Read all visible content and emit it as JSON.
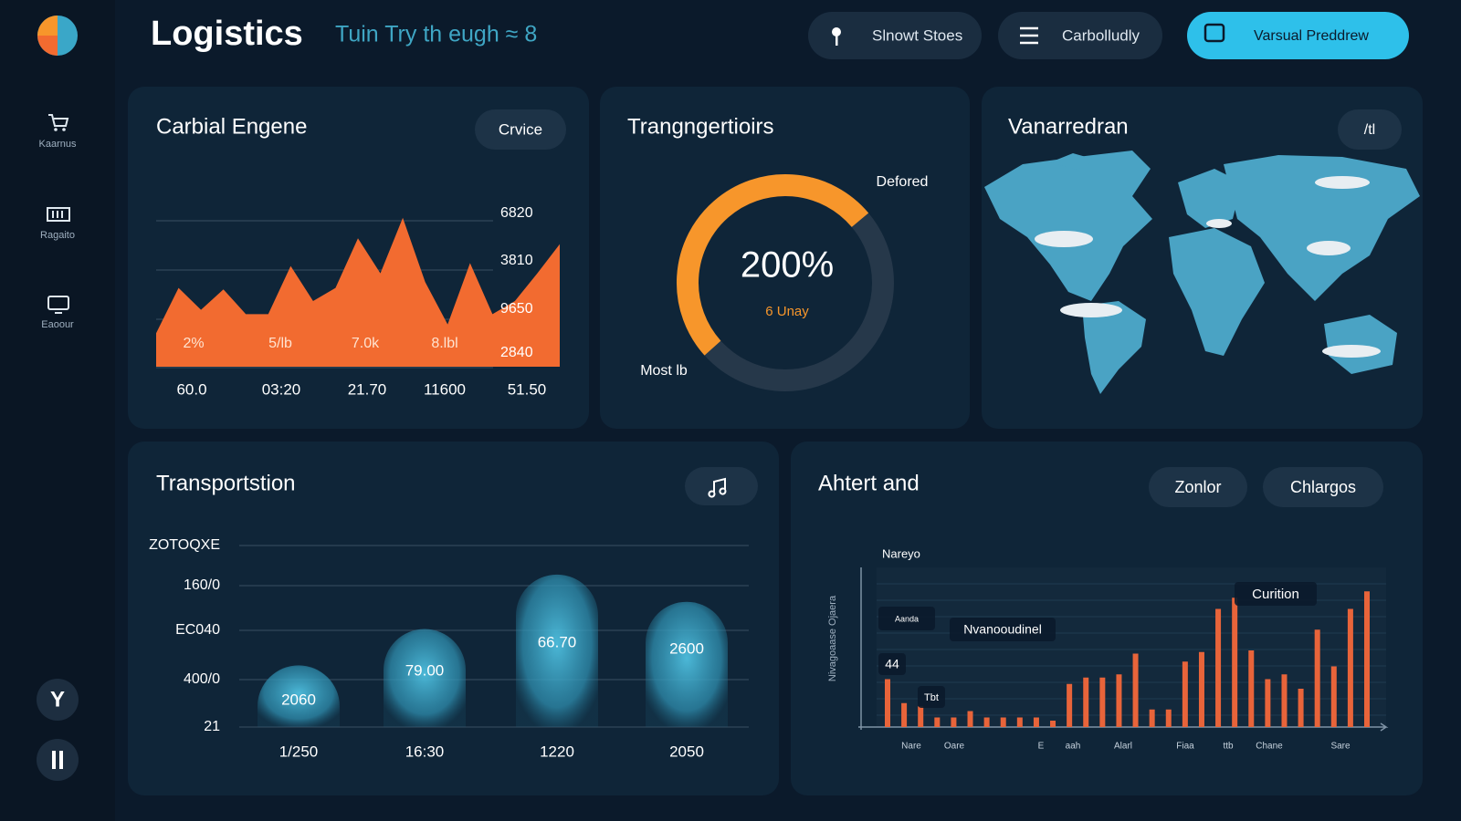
{
  "header": {
    "title": "Logistics",
    "subtitle": "Tuin Try th eugh ≈ 8",
    "buttons": [
      "Slnowt Stoes",
      "Carbolludly",
      "Varsual Preddrew"
    ]
  },
  "sidebar": {
    "items": [
      "Kaarnus",
      "Ragaito",
      "Eaoour"
    ],
    "avatar": "Y"
  },
  "panels": [
    {
      "title": "Carbial Engene",
      "button": "Crvice",
      "chart": {
        "type": "area",
        "color": "#f26b30",
        "ylim": [
          0,
          110
        ],
        "values": [
          23,
          54,
          39,
          53,
          36,
          36,
          69,
          45,
          54,
          88,
          64,
          102,
          58,
          29,
          71,
          36,
          45,
          64,
          84
        ],
        "right_labels": [
          "6820",
          "3810",
          "9650",
          "2840"
        ],
        "inner_labels": [
          "2%",
          "5/lb",
          "7.0k",
          "8.lbl"
        ],
        "categories": [
          "60.0",
          "03:20",
          "21.70",
          "11600",
          "51.50"
        ]
      }
    },
    {
      "title": "Trangngertioirs",
      "gauge": {
        "value": "200%",
        "sublabel": "6 Unay",
        "top_label": "Defored",
        "bottom_label": "Most lb"
      }
    },
    {
      "title": "Vanarredran",
      "button": "/tl"
    },
    {
      "title": "Transportstion",
      "chart": {
        "type": "bar",
        "color": "#3aa7c8",
        "ylim": [
          0,
          100
        ],
        "values": [
          34,
          54,
          84,
          69
        ],
        "bar_labels": [
          "2060",
          "79.00",
          "66.70",
          "2600"
        ],
        "categories": [
          "1/250",
          "16:30",
          "1220",
          "2050"
        ],
        "y_labels": [
          "ZOTOQXE",
          "160/0",
          "EC040",
          "400/0",
          "21"
        ]
      }
    },
    {
      "title": "Ahtert and",
      "buttons": [
        "Zonlor",
        "Chlargos"
      ],
      "chart": {
        "type": "bar",
        "color": "#e8643a",
        "ylim": [
          0,
          100
        ],
        "legend": "Nareyo",
        "y_label": "Nivagoaase Ojaera",
        "annotations": [
          "Curition",
          "Nvanooudinel",
          "44",
          "Tbt",
          "Aanda"
        ],
        "values": [
          30,
          15,
          13,
          6,
          6,
          10,
          6,
          6,
          6,
          6,
          4,
          27,
          31,
          31,
          33,
          46,
          11,
          11,
          41,
          47,
          74,
          81,
          48,
          30,
          33,
          24,
          61,
          38,
          74,
          85
        ],
        "categories": [
          "Nare",
          "Oare",
          "E",
          "aah",
          "Alarl",
          "Fiaa",
          "ttb",
          "Chane",
          "Sare"
        ]
      }
    }
  ]
}
